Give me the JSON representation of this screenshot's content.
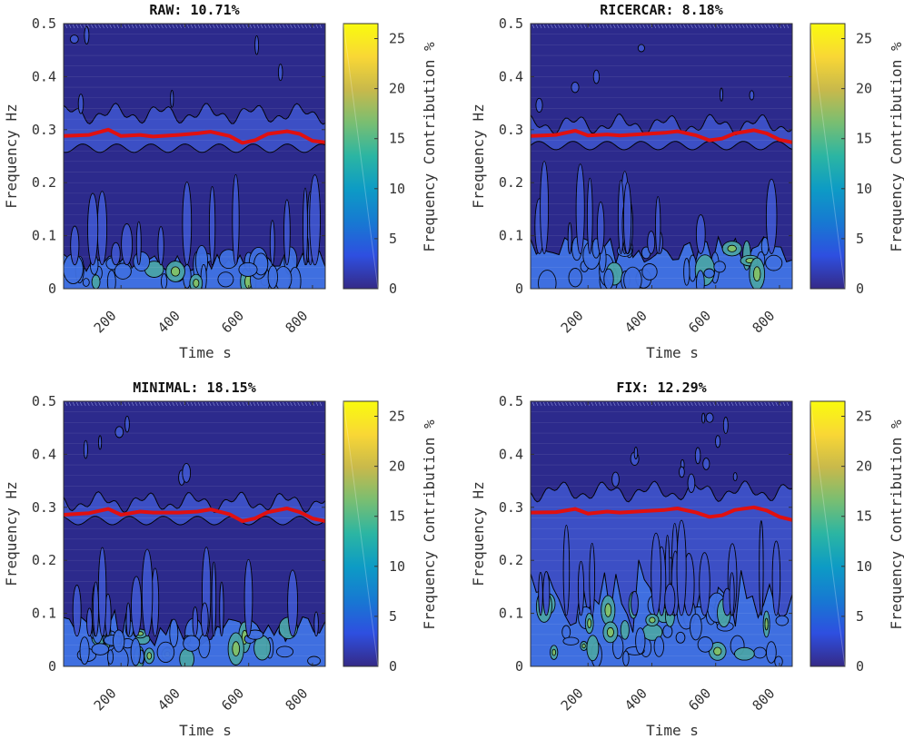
{
  "figure_colors": {
    "background": "#2c2a8c",
    "band_low": "#3d52c9",
    "band_mid": "#3f6fe0",
    "hot": "#4aa3a8",
    "peak": "#7fbf6a",
    "ridge": "#e01010",
    "contour": "#000000",
    "axis": "#333333"
  },
  "colormap": [
    "#352a87",
    "#2e4fe0",
    "#1779d2",
    "#0d9bc5",
    "#2bb5a3",
    "#78be72",
    "#c8b94b",
    "#f9d735",
    "#f9fb0e"
  ],
  "chart_data": [
    {
      "type": "heatmap",
      "id": "raw",
      "title": "RAW: 10.71%",
      "xlabel": "Time s",
      "ylabel": "Frequency Hz",
      "xlim": [
        20,
        840
      ],
      "ylim": [
        0,
        0.5
      ],
      "xticks": [
        200,
        400,
        600,
        800
      ],
      "xtick_labels": [
        "200",
        "400",
        "600",
        "800"
      ],
      "yticks": [
        0,
        0.1,
        0.2,
        0.3,
        0.4,
        0.5
      ],
      "ytick_labels": [
        "0",
        "0.1",
        "0.2",
        "0.3",
        "0.4",
        "0.5"
      ],
      "colorbar": {
        "label": "Frequency Contribution %",
        "range": [
          0,
          26.5
        ],
        "ticks": [
          0,
          5,
          10,
          15,
          20,
          25
        ],
        "tick_labels": [
          "0",
          "5",
          "10",
          "15",
          "20",
          "25"
        ]
      },
      "band_upper": 0.33,
      "band_lower": 0.265,
      "low_extent": 0.075,
      "low_activity": 0.55,
      "ridge": {
        "x": [
          20,
          100,
          160,
          200,
          260,
          300,
          380,
          440,
          480,
          540,
          580,
          620,
          660,
          720,
          760,
          800,
          840
        ],
        "y": [
          0.288,
          0.29,
          0.3,
          0.288,
          0.29,
          0.287,
          0.29,
          0.293,
          0.296,
          0.288,
          0.275,
          0.28,
          0.292,
          0.297,
          0.292,
          0.279,
          0.276
        ]
      }
    },
    {
      "type": "heatmap",
      "id": "ricercar",
      "title": "RICERCAR: 8.18%",
      "xlabel": "Time s",
      "ylabel": "Frequency Hz",
      "xlim": [
        20,
        840
      ],
      "ylim": [
        0,
        0.5
      ],
      "xticks": [
        200,
        400,
        600,
        800
      ],
      "xtick_labels": [
        "200",
        "400",
        "600",
        "800"
      ],
      "yticks": [
        0,
        0.1,
        0.2,
        0.3,
        0.4,
        0.5
      ],
      "ytick_labels": [
        "0",
        "0.1",
        "0.2",
        "0.3",
        "0.4",
        "0.5"
      ],
      "colorbar": {
        "label": "Frequency Contribution %",
        "range": [
          0,
          26.5
        ],
        "ticks": [
          0,
          5,
          10,
          15,
          20,
          25
        ],
        "tick_labels": [
          "0",
          "5",
          "10",
          "15",
          "20",
          "25"
        ]
      },
      "band_upper": 0.31,
      "band_lower": 0.27,
      "low_extent": 0.11,
      "low_activity": 0.5,
      "ridge": {
        "x": [
          20,
          100,
          160,
          200,
          260,
          300,
          380,
          440,
          480,
          540,
          580,
          620,
          660,
          720,
          760,
          800,
          840
        ],
        "y": [
          0.288,
          0.29,
          0.298,
          0.289,
          0.291,
          0.289,
          0.292,
          0.294,
          0.297,
          0.289,
          0.28,
          0.283,
          0.293,
          0.299,
          0.293,
          0.281,
          0.276
        ]
      }
    },
    {
      "type": "heatmap",
      "id": "minimal",
      "title": "MINIMAL: 18.15%",
      "xlabel": "Time s",
      "ylabel": "Frequency Hz",
      "xlim": [
        20,
        840
      ],
      "ylim": [
        0,
        0.5
      ],
      "xticks": [
        200,
        400,
        600,
        800
      ],
      "xtick_labels": [
        "200",
        "400",
        "600",
        "800"
      ],
      "yticks": [
        0,
        0.1,
        0.2,
        0.3,
        0.4,
        0.5
      ],
      "ytick_labels": [
        "0",
        "0.1",
        "0.2",
        "0.3",
        "0.4",
        "0.5"
      ],
      "colorbar": {
        "label": "Frequency Contribution %",
        "range": [
          0,
          26.5
        ],
        "ticks": [
          0,
          5,
          10,
          15,
          20,
          25
        ],
        "tick_labels": [
          "0",
          "5",
          "10",
          "15",
          "20",
          "25"
        ]
      },
      "band_upper": 0.31,
      "band_lower": 0.275,
      "low_extent": 0.095,
      "low_activity": 0.75,
      "ridge": {
        "x": [
          20,
          100,
          160,
          200,
          260,
          300,
          380,
          440,
          480,
          540,
          580,
          620,
          660,
          720,
          760,
          800,
          840
        ],
        "y": [
          0.286,
          0.289,
          0.297,
          0.286,
          0.292,
          0.29,
          0.29,
          0.292,
          0.296,
          0.287,
          0.274,
          0.279,
          0.291,
          0.298,
          0.291,
          0.279,
          0.274
        ]
      }
    },
    {
      "type": "heatmap",
      "id": "fix",
      "title": "FIX: 12.29%",
      "xlabel": "Time s",
      "ylabel": "Frequency Hz",
      "xlim": [
        20,
        840
      ],
      "ylim": [
        0,
        0.5
      ],
      "xticks": [
        200,
        400,
        600,
        800
      ],
      "xtick_labels": [
        "200",
        "400",
        "600",
        "800"
      ],
      "yticks": [
        0,
        0.1,
        0.2,
        0.3,
        0.4,
        0.5
      ],
      "ytick_labels": [
        "0",
        "0.1",
        "0.2",
        "0.3",
        "0.4",
        "0.5"
      ],
      "colorbar": {
        "label": "Frequency Contribution %",
        "range": [
          0,
          26.5
        ],
        "ticks": [
          0,
          5,
          10,
          15,
          20,
          25
        ],
        "tick_labels": [
          "0",
          "5",
          "10",
          "15",
          "20",
          "25"
        ]
      },
      "band_upper": 0.33,
      "band_lower": 0.0,
      "low_extent": 0.16,
      "low_activity": 1.0,
      "ridge": {
        "x": [
          20,
          100,
          160,
          200,
          260,
          300,
          380,
          440,
          480,
          540,
          580,
          620,
          660,
          720,
          760,
          800,
          840
        ],
        "y": [
          0.29,
          0.291,
          0.297,
          0.288,
          0.292,
          0.29,
          0.293,
          0.295,
          0.298,
          0.29,
          0.282,
          0.285,
          0.295,
          0.3,
          0.294,
          0.282,
          0.276
        ]
      }
    }
  ]
}
